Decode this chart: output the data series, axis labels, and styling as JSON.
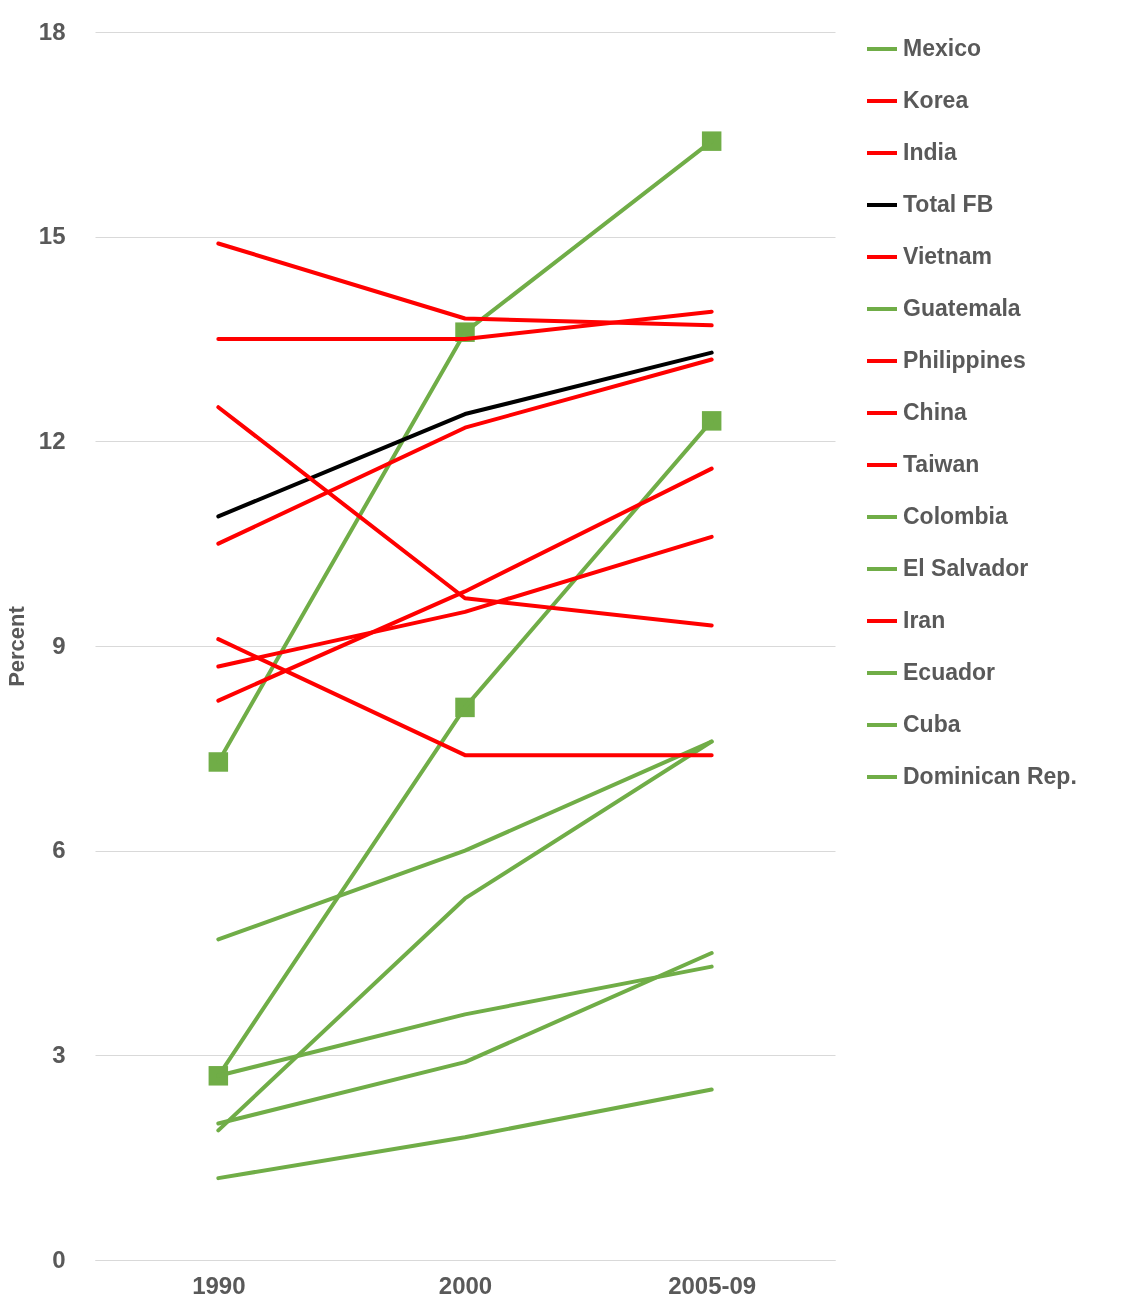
{
  "chart_data": {
    "type": "line",
    "ylabel": "Percent",
    "categories": [
      "1990",
      "2000",
      "2005-09"
    ],
    "ylim": [
      0,
      18
    ],
    "yticks": [
      {
        "value": 0,
        "label": "0"
      },
      {
        "value": 3,
        "label": "3"
      },
      {
        "value": 6,
        "label": "6"
      },
      {
        "value": 9,
        "label": "9"
      },
      {
        "value": 12,
        "label": "12"
      },
      {
        "value": 15,
        "label": "15"
      },
      {
        "value": 18,
        "label": "18"
      }
    ],
    "grid": "y",
    "legend": "right",
    "line_style": "solid",
    "series": [
      {
        "name": "Mexico",
        "color": "#70ad47",
        "marker": "square",
        "values": [
          7.3,
          13.6,
          16.4
        ]
      },
      {
        "name": "Korea",
        "color": "#ff0000",
        "values": [
          13.5,
          13.5,
          13.9
        ]
      },
      {
        "name": "India",
        "color": "#ff0000",
        "values": [
          14.9,
          13.8,
          13.7
        ]
      },
      {
        "name": "Total FB",
        "color": "#000000",
        "values": [
          10.9,
          12.4,
          13.3
        ]
      },
      {
        "name": "Vietnam",
        "color": "#ff0000",
        "values": [
          10.5,
          12.2,
          13.2
        ]
      },
      {
        "name": "Guatemala",
        "color": "#70ad47",
        "marker": "square",
        "values": [
          2.7,
          8.1,
          12.3
        ]
      },
      {
        "name": "Philippines",
        "color": "#ff0000",
        "values": [
          8.2,
          9.8,
          11.6
        ]
      },
      {
        "name": "China",
        "color": "#ff0000",
        "values": [
          8.7,
          9.5,
          10.6
        ]
      },
      {
        "name": "Taiwan",
        "color": "#ff0000",
        "values": [
          12.5,
          9.7,
          9.3
        ]
      },
      {
        "name": "Colombia",
        "color": "#70ad47",
        "values": [
          4.7,
          6.0,
          7.6
        ]
      },
      {
        "name": "El Salvador",
        "color": "#70ad47",
        "values": [
          1.9,
          5.3,
          7.6
        ]
      },
      {
        "name": "Iran",
        "color": "#ff0000",
        "values": [
          9.1,
          7.4,
          7.4
        ]
      },
      {
        "name": "Ecuador",
        "color": "#70ad47",
        "values": [
          2.0,
          2.9,
          4.5
        ]
      },
      {
        "name": "Cuba",
        "color": "#70ad47",
        "values": [
          2.7,
          3.6,
          4.3
        ]
      },
      {
        "name": "Dominican Rep.",
        "color": "#70ad47",
        "values": [
          1.2,
          1.8,
          2.5
        ]
      }
    ]
  }
}
